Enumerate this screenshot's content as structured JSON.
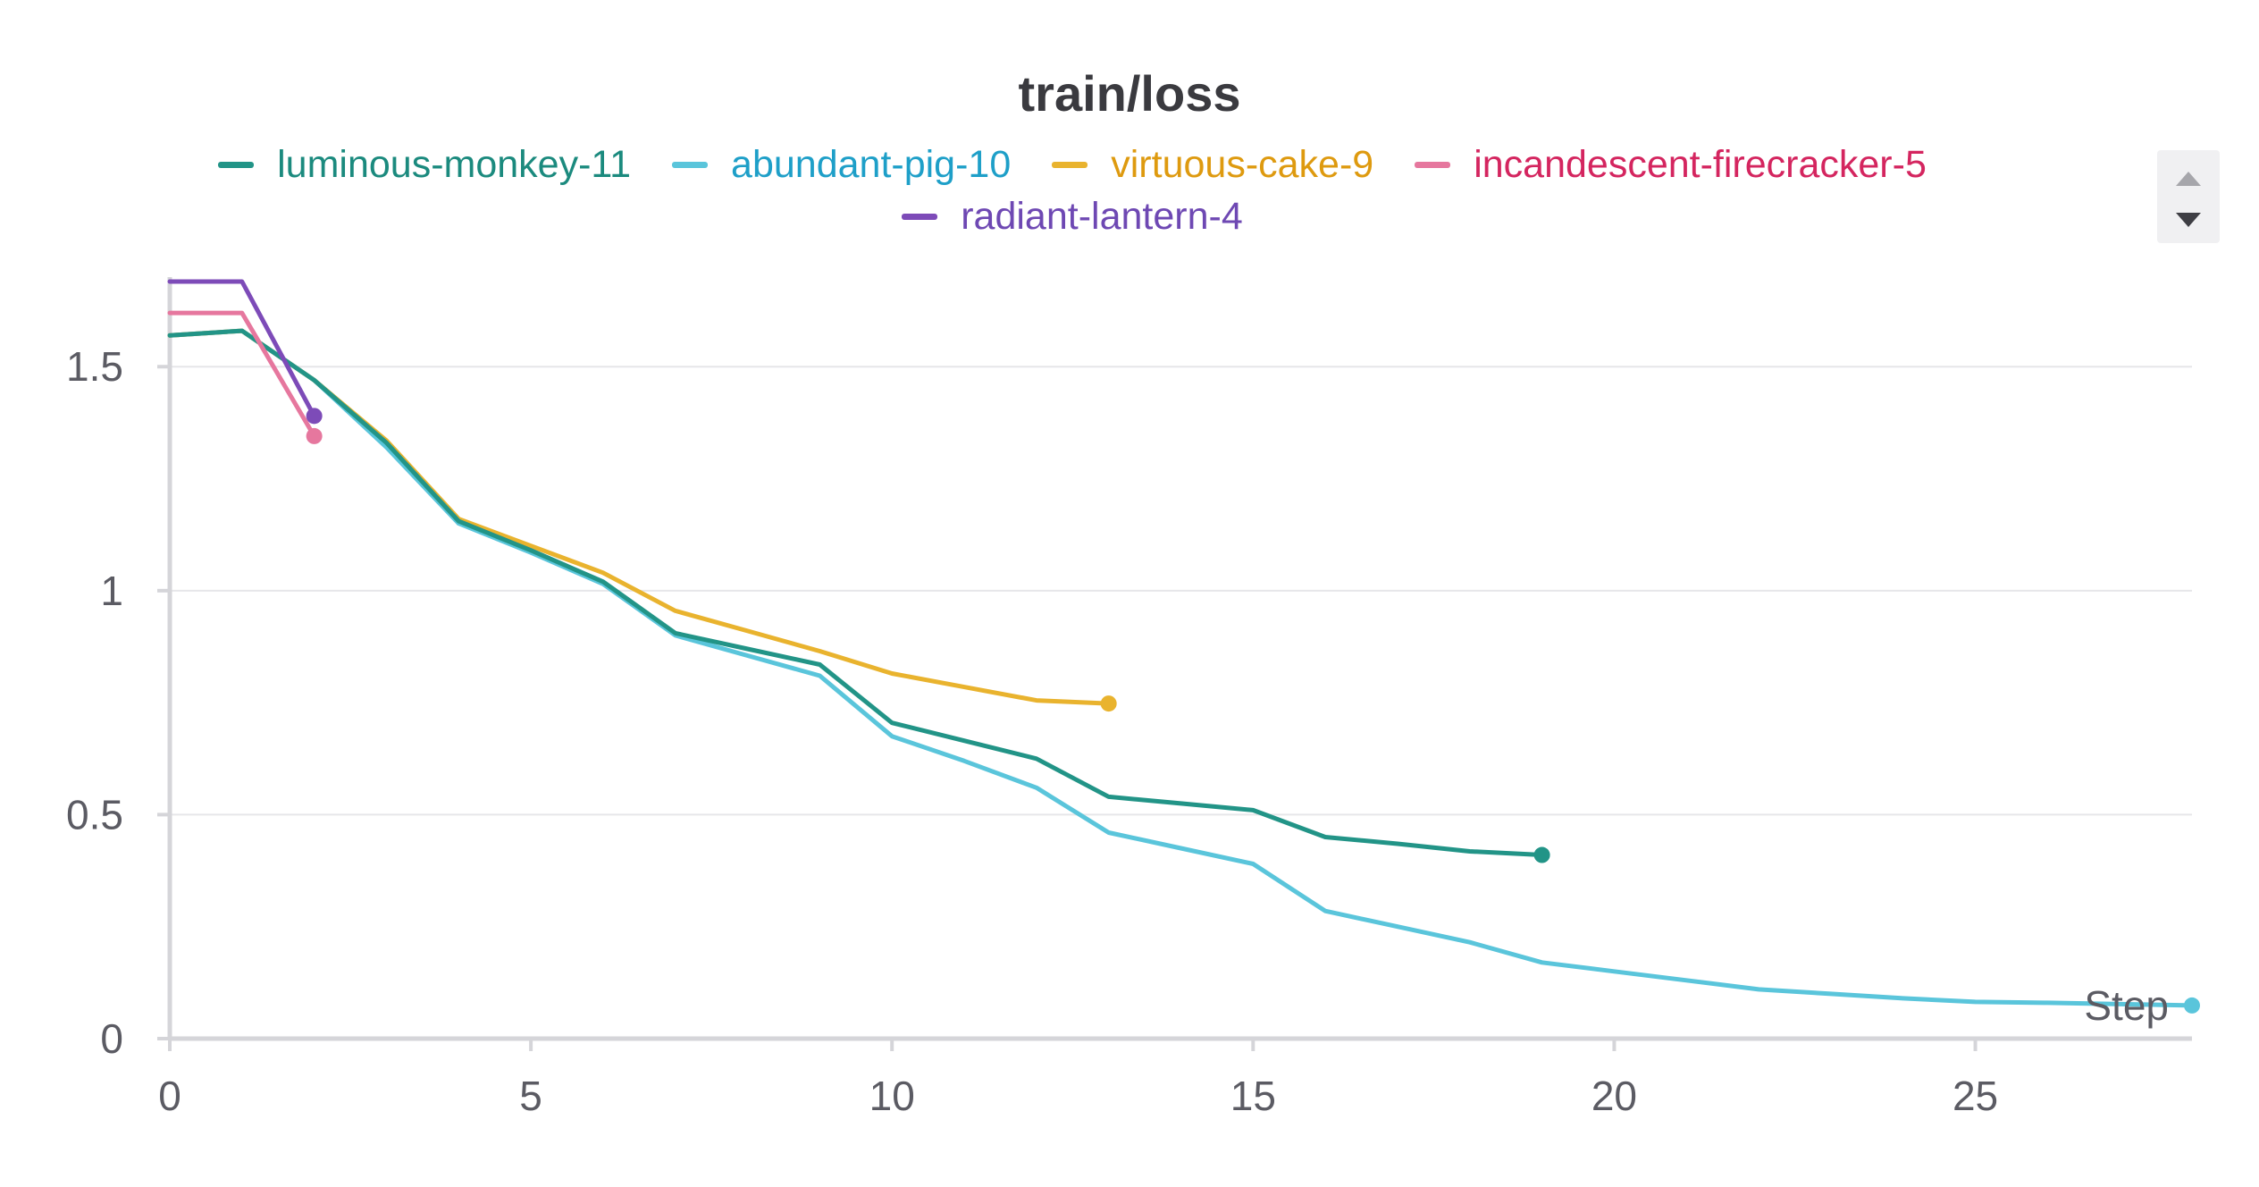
{
  "chart_data": {
    "type": "line",
    "title": "train/loss",
    "xlabel": "Step",
    "ylabel": "",
    "xlim": [
      0,
      28
    ],
    "ylim": [
      0,
      1.7
    ],
    "xticks": [
      0,
      5,
      10,
      15,
      20,
      25
    ],
    "xtick_labels": [
      "0",
      "5",
      "10",
      "15",
      "20",
      "25"
    ],
    "yticks": [
      0,
      0.5,
      1,
      1.5
    ],
    "ytick_labels": [
      "0",
      "0.5",
      "1",
      "1.5"
    ],
    "grid": true,
    "legend_position": "top",
    "series": [
      {
        "name": "luminous-monkey-11",
        "color": "#229487",
        "label_color": "#1b8a7e",
        "x": [
          0,
          1,
          2,
          3,
          4,
          5,
          6,
          7,
          8,
          9,
          10,
          11,
          12,
          13,
          14,
          15,
          16,
          17,
          18,
          19
        ],
        "y": [
          1.57,
          1.58,
          1.47,
          1.33,
          1.155,
          1.09,
          1.02,
          0.905,
          0.87,
          0.835,
          0.705,
          0.665,
          0.625,
          0.54,
          0.525,
          0.51,
          0.45,
          0.435,
          0.418,
          0.41
        ]
      },
      {
        "name": "abundant-pig-10",
        "color": "#5ac5db",
        "label_color": "#1e9fc8",
        "x": [
          0,
          1,
          2,
          3,
          4,
          5,
          6,
          7,
          8,
          9,
          10,
          11,
          12,
          13,
          14,
          15,
          16,
          17,
          18,
          19,
          20,
          21,
          22,
          23,
          24,
          25,
          26,
          27,
          28
        ],
        "y": [
          1.57,
          1.58,
          1.47,
          1.32,
          1.15,
          1.085,
          1.015,
          0.9,
          0.855,
          0.81,
          0.675,
          0.62,
          0.56,
          0.46,
          0.425,
          0.39,
          0.285,
          0.25,
          0.215,
          0.17,
          0.15,
          0.13,
          0.11,
          0.1,
          0.09,
          0.082,
          0.08,
          0.077,
          0.074
        ]
      },
      {
        "name": "virtuous-cake-9",
        "color": "#e9b32e",
        "label_color": "#de9a0f",
        "x": [
          0,
          1,
          2,
          3,
          4,
          5,
          6,
          7,
          8,
          9,
          10,
          11,
          12,
          13
        ],
        "y": [
          1.57,
          1.58,
          1.47,
          1.335,
          1.16,
          1.1,
          1.04,
          0.955,
          0.91,
          0.865,
          0.815,
          0.785,
          0.755,
          0.748
        ]
      },
      {
        "name": "incandescent-firecracker-5",
        "color": "#e6779e",
        "label_color": "#d4255f",
        "x": [
          0,
          1,
          2
        ],
        "y": [
          1.62,
          1.62,
          1.345
        ]
      },
      {
        "name": "radiant-lantern-4",
        "color": "#7d4bb8",
        "label_color": "#6e48b3",
        "x": [
          0,
          1,
          2
        ],
        "y": [
          1.69,
          1.69,
          1.39
        ]
      }
    ]
  }
}
